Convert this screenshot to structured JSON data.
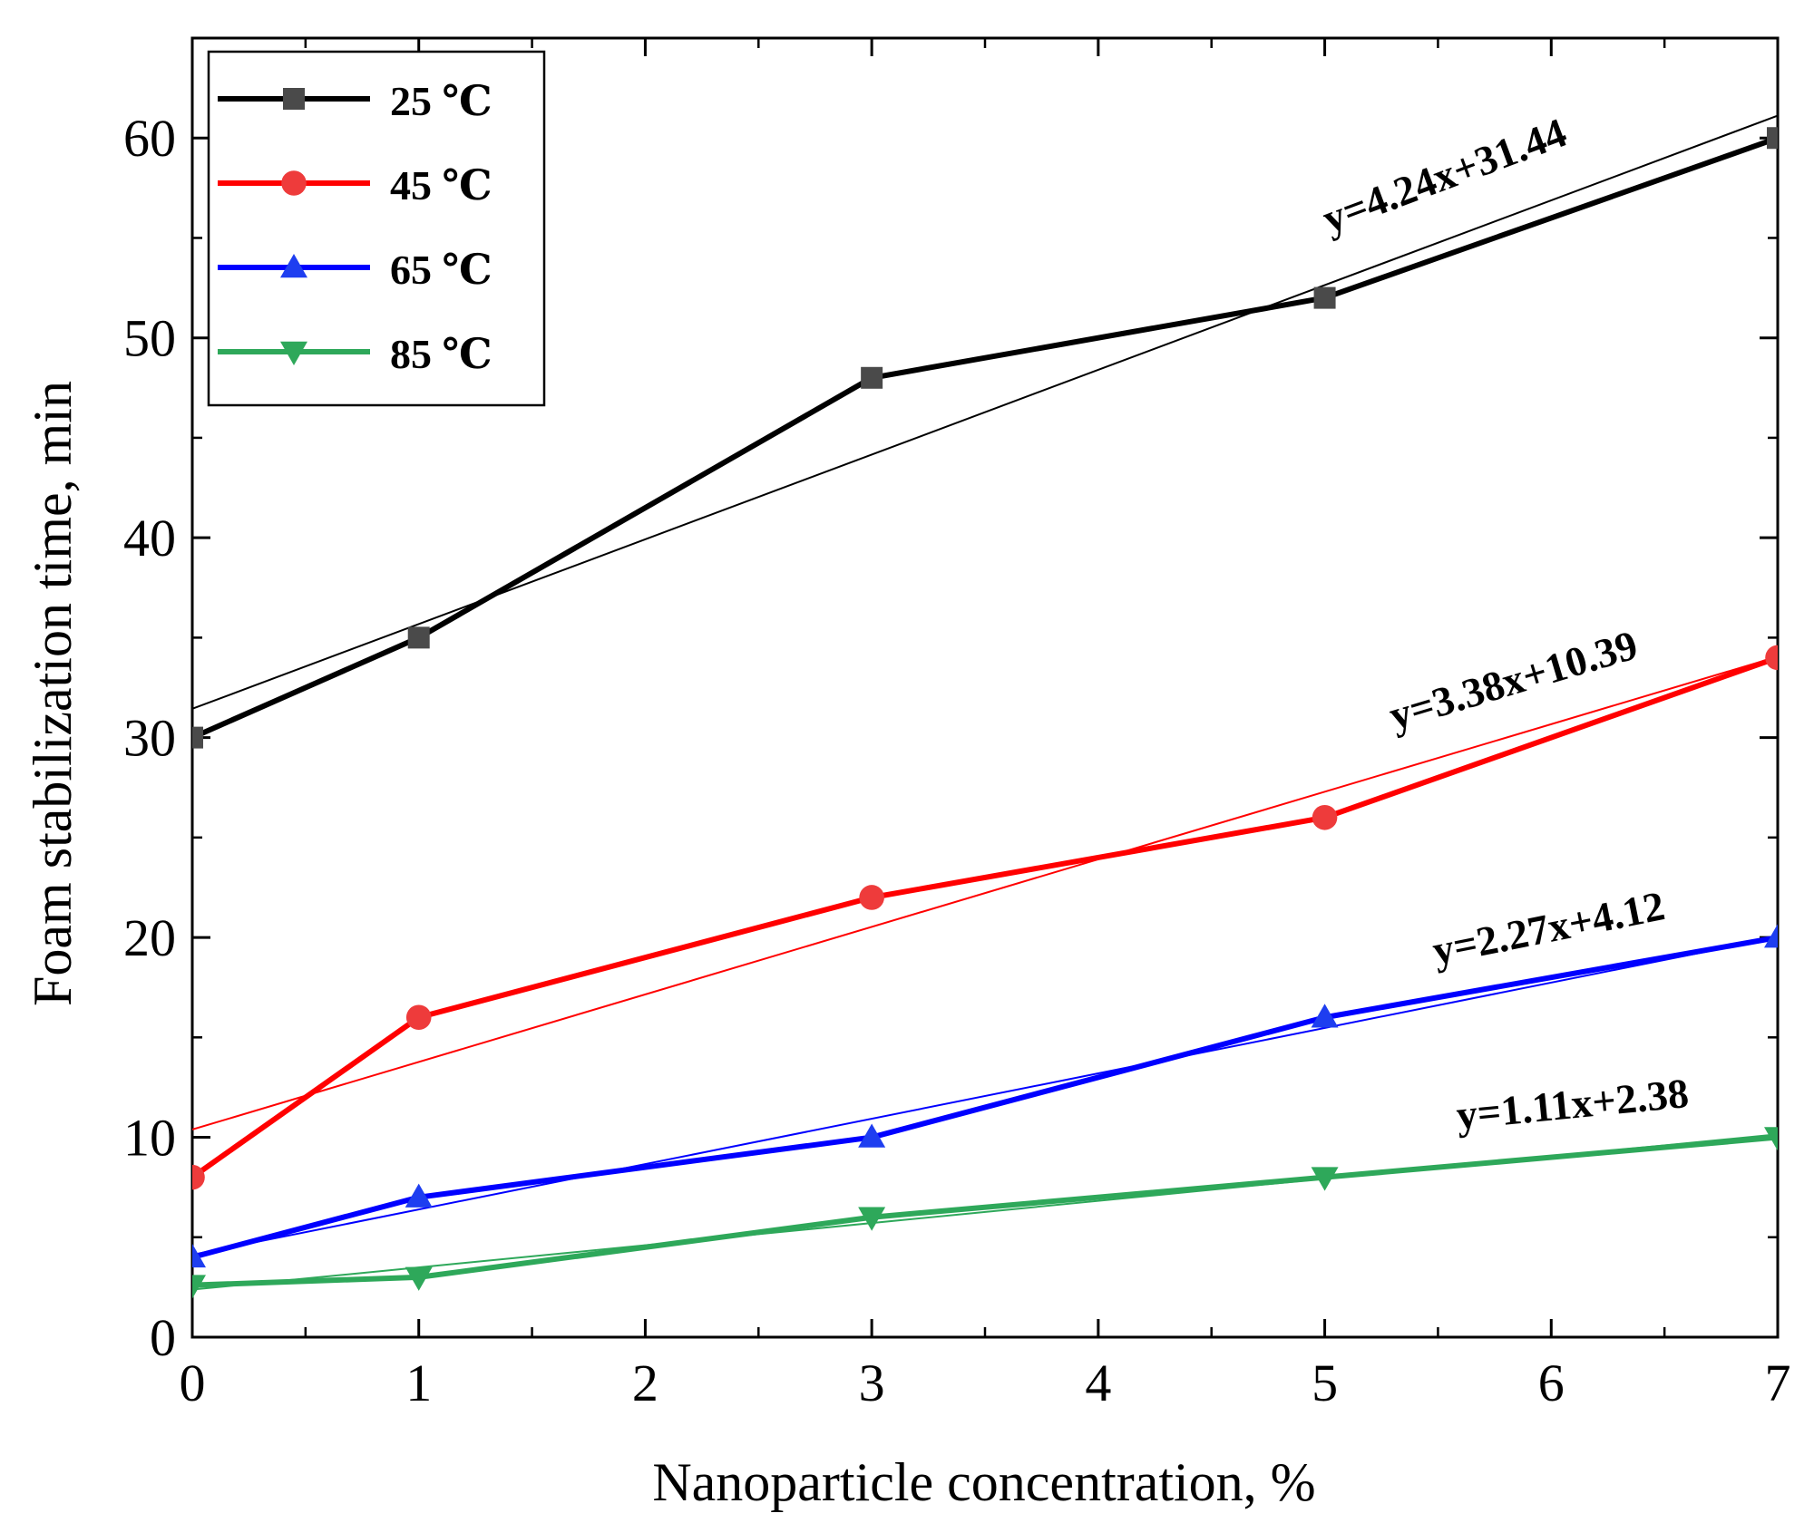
{
  "chart_data": {
    "type": "line",
    "title": "",
    "xlabel": "Nanoparticle concentration, %",
    "ylabel": "Foam stabilization time, min",
    "xlim": [
      0,
      7
    ],
    "ylim": [
      0,
      65
    ],
    "x_ticks": [
      0,
      1,
      2,
      3,
      4,
      5,
      6,
      7
    ],
    "x_tick_labels": [
      "0",
      "1",
      "2",
      "3",
      "4",
      "5",
      "6",
      "7"
    ],
    "y_ticks": [
      0,
      10,
      20,
      30,
      40,
      50,
      60
    ],
    "y_tick_labels": [
      "0",
      "10",
      "20",
      "30",
      "40",
      "50",
      "60"
    ],
    "grid": false,
    "legend_position": "top-left",
    "x": [
      0,
      1,
      3,
      5,
      7
    ],
    "series": [
      {
        "name": "25 ℃",
        "values": [
          30,
          35,
          48,
          52,
          60
        ],
        "color": "#000000",
        "marker": "square",
        "marker_color": "#4a4a4a",
        "fit": {
          "slope": 4.24,
          "intercept": 31.44,
          "label": "y=4.24x+31.44"
        }
      },
      {
        "name": "45 ℃",
        "values": [
          8,
          16,
          22,
          26,
          34
        ],
        "color": "#ff0000",
        "marker": "circle",
        "marker_color": "#ee3b3b",
        "fit": {
          "slope": 3.38,
          "intercept": 10.39,
          "label": "y=3.38x+10.39"
        }
      },
      {
        "name": "65 ℃",
        "values": [
          4,
          7,
          10,
          16,
          20
        ],
        "color": "#0000ff",
        "marker": "triangle-up",
        "marker_color": "#1e3ef0",
        "fit": {
          "slope": 2.27,
          "intercept": 4.12,
          "label": "y=2.27x+4.12"
        }
      },
      {
        "name": "85 ℃",
        "values": [
          2.6,
          3,
          6,
          8,
          10
        ],
        "color": "#2ea85a",
        "marker": "triangle-down",
        "marker_color": "#2ea85a",
        "fit": {
          "slope": 1.11,
          "intercept": 2.38,
          "label": "y=1.11x+2.38"
        }
      }
    ]
  }
}
